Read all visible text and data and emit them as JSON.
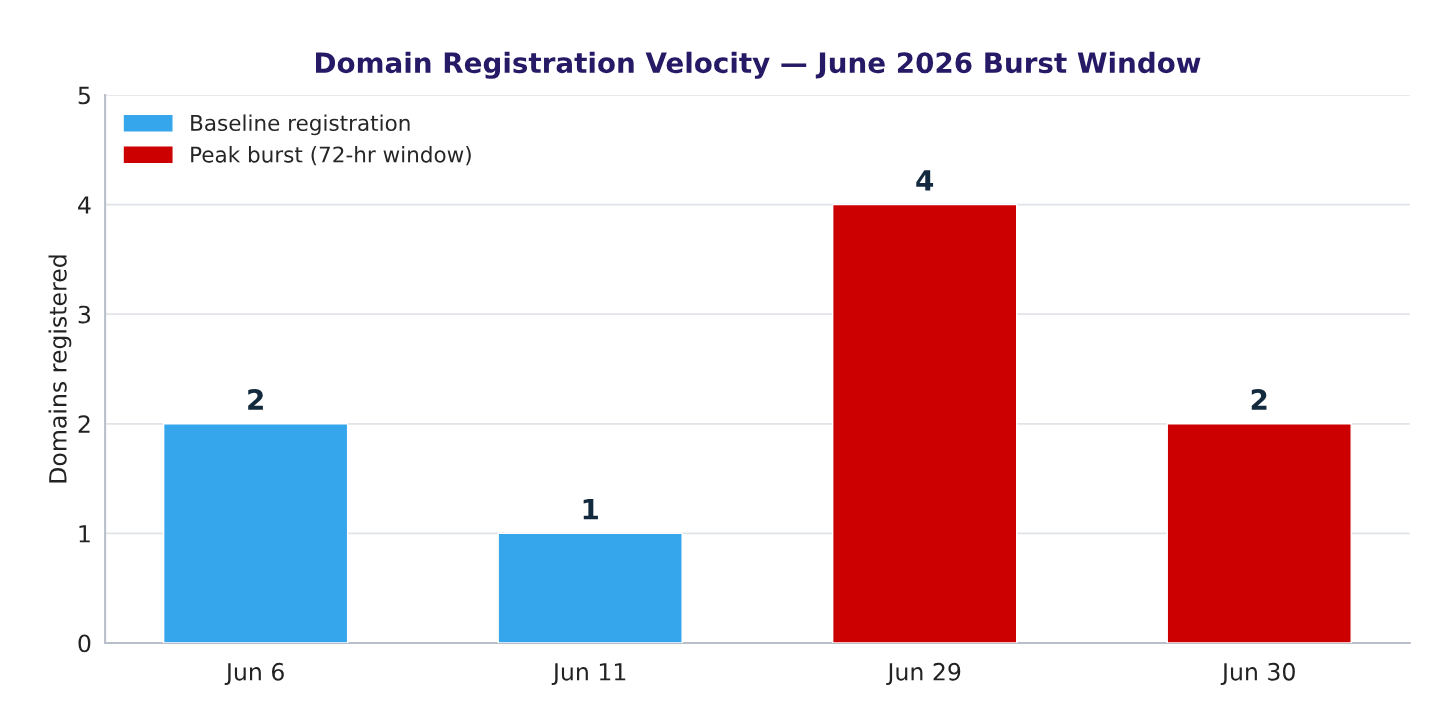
{
  "chart_data": {
    "type": "bar",
    "title": "Domain Registration Velocity — June 2026 Burst Window",
    "ylabel": "Domains registered",
    "categories": [
      "Jun 6",
      "Jun 11",
      "Jun 29",
      "Jun 30"
    ],
    "series": [
      {
        "name": "Baseline registration",
        "color": "#36a6ec",
        "values": [
          2,
          1,
          null,
          null
        ]
      },
      {
        "name": "Peak burst (72-hr window)",
        "color": "#cc0000",
        "values": [
          null,
          null,
          4,
          2
        ]
      }
    ],
    "ylim": [
      0,
      5
    ],
    "yticks": [
      0,
      1,
      2,
      3,
      4,
      5
    ],
    "grid": "y",
    "legend": "top left",
    "data_labels": true
  }
}
